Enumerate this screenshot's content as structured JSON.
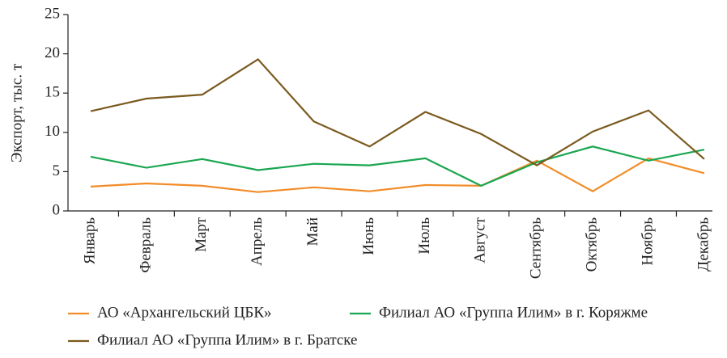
{
  "chart_data": {
    "type": "line",
    "y_label": "Экспорт, тыс. т",
    "categories": [
      "Январь",
      "Февраль",
      "Март",
      "Апрель",
      "Май",
      "Июнь",
      "Июль",
      "Август",
      "Сентябрь",
      "Октябрь",
      "Ноябрь",
      "Декабрь"
    ],
    "series": [
      {
        "name": "АО «Архангельский ЦБК»",
        "color": "#f28c28",
        "values": [
          3.1,
          3.5,
          3.2,
          2.4,
          3.0,
          2.5,
          3.3,
          3.2,
          6.4,
          2.5,
          6.7,
          4.8
        ]
      },
      {
        "name": "Филиал АО «Группа Илим» в г. Коряжме",
        "color": "#1aa650",
        "values": [
          6.9,
          5.5,
          6.6,
          5.2,
          6.0,
          5.8,
          6.7,
          3.2,
          6.2,
          8.2,
          6.4,
          7.8
        ]
      },
      {
        "name": "Филиал АО «Группа Илим» в г. Братске",
        "color": "#7a5a1e",
        "values": [
          12.7,
          14.3,
          14.8,
          19.3,
          11.4,
          8.2,
          12.6,
          9.8,
          5.8,
          10.1,
          12.8,
          6.6
        ]
      }
    ],
    "ylim": [
      0,
      25
    ],
    "yticks": [
      0,
      5,
      10,
      15,
      20,
      25
    ],
    "grid": false
  }
}
